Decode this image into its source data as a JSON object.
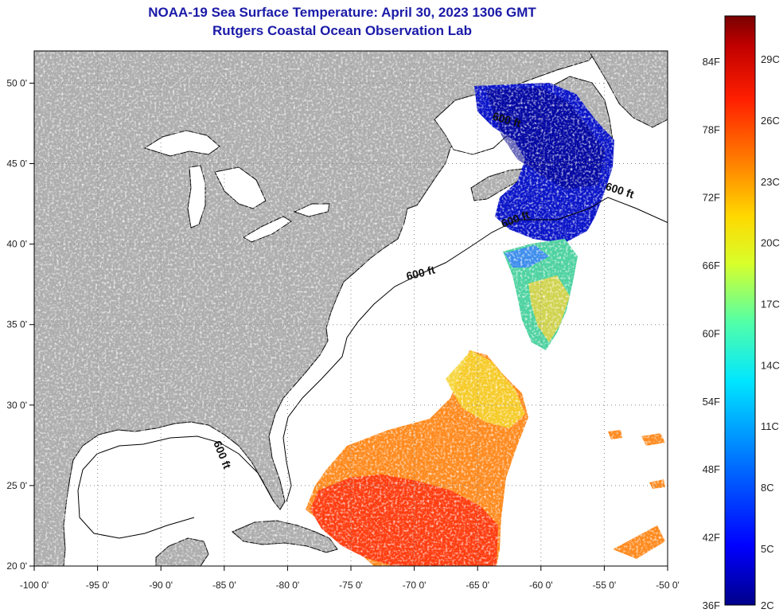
{
  "header": {
    "title": "NOAA-19 Sea Surface Temperature:  April 30, 2023 1306 GMT",
    "subtitle": "Rutgers Coastal Ocean Observation Lab"
  },
  "map": {
    "lon_range": [
      -100,
      -50
    ],
    "lat_range": [
      20,
      52
    ],
    "x_ticks": [
      "-100 0'",
      "-95 0'",
      "-90 0'",
      "-85 0'",
      "-80 0'",
      "-75 0'",
      "-70 0'",
      "-65 0'",
      "-60 0'",
      "-55 0'",
      "-50 0'"
    ],
    "y_ticks": [
      "20 0'",
      "25 0'",
      "30 0'",
      "35 0'",
      "40 0'",
      "45 0'",
      "50 0'"
    ],
    "y_tick_lats": [
      20,
      25,
      30,
      35,
      40,
      45,
      50
    ],
    "isobath_label": "600 ft",
    "land_color": "#adadad",
    "ocean_color": "#ffffff"
  },
  "colorbar": {
    "fahrenheit_labels": [
      "84F",
      "78F",
      "72F",
      "66F",
      "60F",
      "54F",
      "48F",
      "42F",
      "36F"
    ],
    "fahrenheit_values": [
      84,
      78,
      72,
      66,
      60,
      54,
      48,
      42,
      36
    ],
    "celsius_labels": [
      "29C",
      "26C",
      "23C",
      "20C",
      "17C",
      "14C",
      "11C",
      "8C",
      "5C",
      "2C"
    ],
    "celsius_values": [
      29,
      26,
      23,
      20,
      17,
      14,
      11,
      8,
      5,
      2
    ],
    "range_f": [
      36,
      88
    ],
    "colors": [
      "#00008a",
      "#0000ff",
      "#0078ff",
      "#00e6ff",
      "#52ffa8",
      "#d8ff2a",
      "#ffd800",
      "#ff7800",
      "#ff1e00",
      "#c00000",
      "#780000"
    ]
  }
}
